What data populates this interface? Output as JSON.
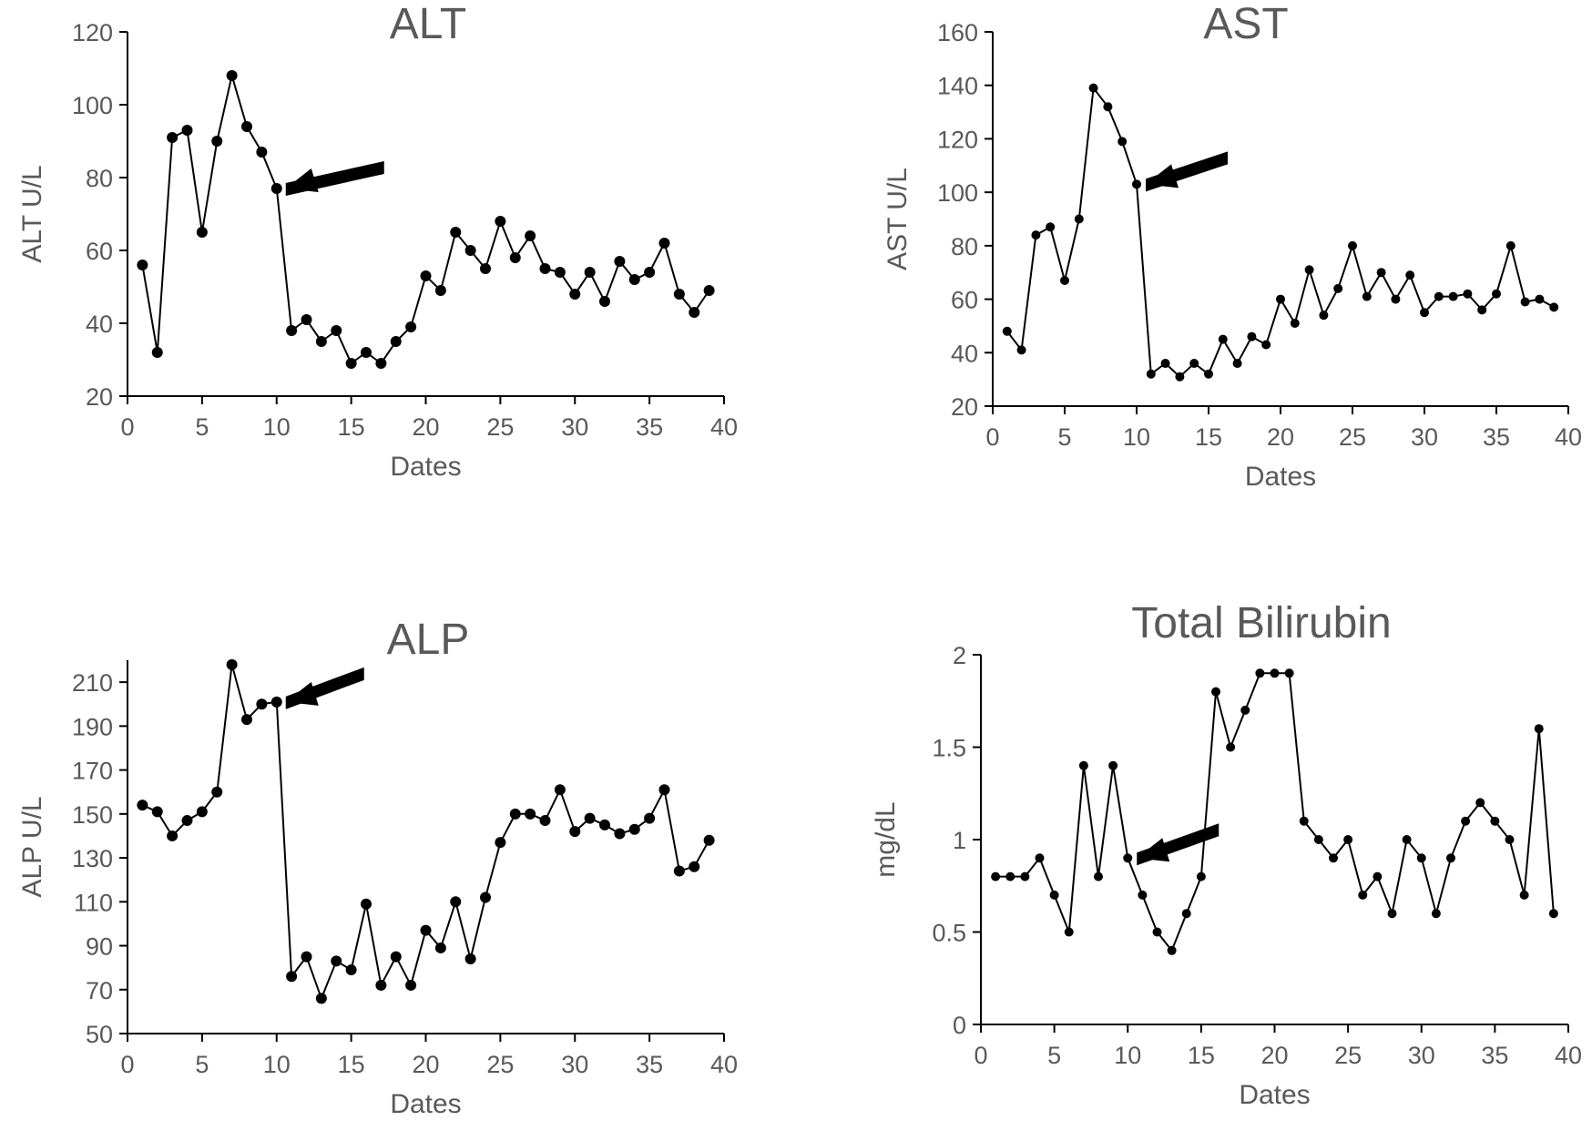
{
  "chart_data": [
    {
      "type": "line",
      "title": "ALT",
      "xlabel": "Dates",
      "ylabel": "ALT U/L",
      "xlim": [
        0,
        40
      ],
      "ylim": [
        20,
        120
      ],
      "xticks": [
        0,
        5,
        10,
        15,
        20,
        25,
        30,
        35,
        40
      ],
      "yticks": [
        20,
        40,
        60,
        80,
        100,
        120
      ],
      "series": [
        {
          "x": [
            1,
            2,
            3,
            4,
            5,
            6,
            7,
            8,
            9,
            10,
            11,
            12,
            13,
            14,
            15,
            16,
            17,
            18,
            19,
            20,
            21,
            22,
            23,
            24,
            25,
            26,
            27,
            28,
            29,
            30,
            31,
            32,
            33,
            34,
            35,
            36,
            37,
            38,
            39
          ],
          "values": [
            56,
            32,
            91,
            93,
            65,
            90,
            108,
            94,
            87,
            77,
            38,
            41,
            35,
            38,
            29,
            32,
            29,
            35,
            39,
            53,
            49,
            65,
            60,
            55,
            68,
            58,
            64,
            55,
            54,
            48,
            54,
            46,
            57,
            52,
            54,
            62,
            48,
            43,
            49
          ]
        }
      ],
      "annotations": [
        {
          "type": "arrow",
          "points_to": {
            "x": 10,
            "y": 77
          }
        }
      ],
      "grid": false,
      "legend": "none"
    },
    {
      "type": "line",
      "title": "AST",
      "xlabel": "Dates",
      "ylabel": "AST U/L",
      "xlim": [
        0,
        40
      ],
      "ylim": [
        20,
        160
      ],
      "xticks": [
        0,
        5,
        10,
        15,
        20,
        25,
        30,
        35,
        40
      ],
      "yticks": [
        20,
        40,
        60,
        80,
        100,
        120,
        140,
        160
      ],
      "series": [
        {
          "x": [
            1,
            2,
            3,
            4,
            5,
            6,
            7,
            8,
            9,
            10,
            11,
            12,
            13,
            14,
            15,
            16,
            17,
            18,
            19,
            20,
            21,
            22,
            23,
            24,
            25,
            26,
            27,
            28,
            29,
            30,
            31,
            32,
            33,
            34,
            35,
            36,
            37,
            38,
            39
          ],
          "values": [
            48,
            41,
            84,
            87,
            67,
            90,
            139,
            132,
            119,
            103,
            32,
            36,
            31,
            36,
            32,
            45,
            36,
            46,
            43,
            60,
            51,
            71,
            54,
            64,
            80,
            61,
            70,
            60,
            69,
            55,
            61,
            61,
            62,
            56,
            62,
            80,
            59,
            60,
            57
          ]
        }
      ],
      "annotations": [
        {
          "type": "arrow",
          "points_to": {
            "x": 10,
            "y": 103
          }
        }
      ],
      "grid": false,
      "legend": "none"
    },
    {
      "type": "line",
      "title": "ALP",
      "xlabel": "Dates",
      "ylabel": "ALP U/L",
      "xlim": [
        0,
        40
      ],
      "ylim": [
        50,
        220
      ],
      "xticks": [
        0,
        5,
        10,
        15,
        20,
        25,
        30,
        35,
        40
      ],
      "yticks": [
        50,
        70,
        90,
        110,
        130,
        150,
        170,
        190,
        210
      ],
      "series": [
        {
          "x": [
            1,
            2,
            3,
            4,
            5,
            6,
            7,
            8,
            9,
            10,
            11,
            12,
            13,
            14,
            15,
            16,
            17,
            18,
            19,
            20,
            21,
            22,
            23,
            24,
            25,
            26,
            27,
            28,
            29,
            30,
            31,
            32,
            33,
            34,
            35,
            36,
            37,
            38,
            39
          ],
          "values": [
            154,
            151,
            140,
            147,
            151,
            160,
            218,
            193,
            200,
            201,
            76,
            85,
            66,
            83,
            79,
            109,
            72,
            85,
            72,
            97,
            89,
            110,
            84,
            112,
            137,
            150,
            150,
            147,
            161,
            142,
            148,
            145,
            141,
            143,
            148,
            161,
            124,
            126,
            138
          ]
        }
      ],
      "annotations": [
        {
          "type": "arrow",
          "points_to": {
            "x": 10,
            "y": 201
          }
        }
      ],
      "grid": false,
      "legend": "none"
    },
    {
      "type": "line",
      "title": "Total Bilirubin",
      "xlabel": "Dates",
      "ylabel": "mg/dL",
      "xlim": [
        0,
        40
      ],
      "ylim": [
        0,
        2
      ],
      "xticks": [
        0,
        5,
        10,
        15,
        20,
        25,
        30,
        35,
        40
      ],
      "yticks": [
        0,
        0.5,
        1,
        1.5,
        2
      ],
      "series": [
        {
          "x": [
            1,
            2,
            3,
            4,
            5,
            6,
            7,
            8,
            9,
            10,
            11,
            12,
            13,
            14,
            15,
            16,
            17,
            18,
            19,
            20,
            21,
            22,
            23,
            24,
            25,
            26,
            27,
            28,
            29,
            30,
            31,
            32,
            33,
            34,
            35,
            36,
            37,
            38,
            39
          ],
          "values": [
            0.8,
            0.8,
            0.8,
            0.9,
            0.7,
            0.5,
            1.4,
            0.8,
            1.4,
            0.9,
            0.7,
            0.5,
            0.4,
            0.6,
            0.8,
            1.8,
            1.5,
            1.7,
            1.9,
            1.9,
            1.9,
            1.1,
            1.0,
            0.9,
            1.0,
            0.7,
            0.8,
            0.6,
            1.0,
            0.9,
            0.6,
            0.9,
            1.1,
            1.2,
            1.1,
            1.0,
            0.7,
            1.6,
            0.6
          ]
        }
      ],
      "annotations": [
        {
          "type": "arrow",
          "points_to": {
            "x": 10,
            "y": 0.9
          }
        }
      ],
      "grid": false,
      "legend": "none"
    }
  ]
}
